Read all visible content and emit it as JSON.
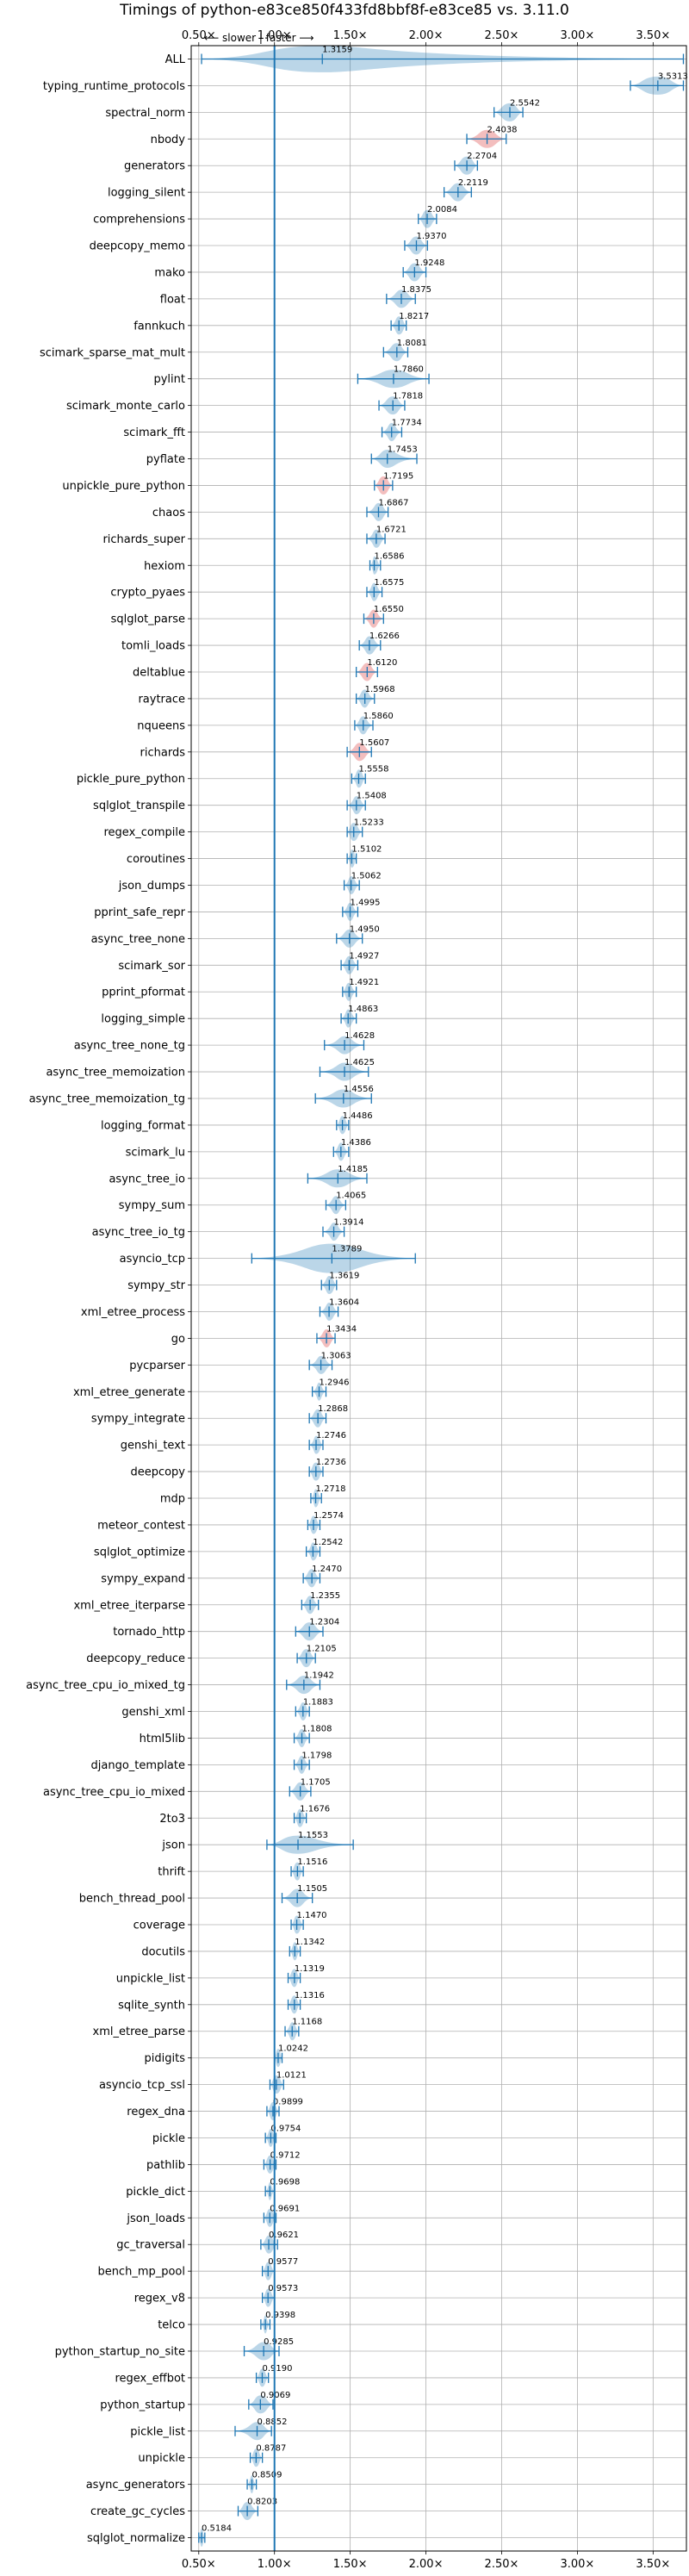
{
  "chart_data": {
    "type": "violin",
    "title": "Timings of python-e83ce850f433fd8bbf8f-e83ce85 vs. 3.11.0",
    "annotation": "⟵ slower | faster ⟶",
    "xlim": [
      0.45,
      3.72
    ],
    "xticks": [
      0.5,
      1.0,
      1.5,
      2.0,
      2.5,
      3.0,
      3.5
    ],
    "xtick_labels": [
      "0.50×",
      "1.00×",
      "1.50×",
      "2.00×",
      "2.50×",
      "3.00×",
      "3.50×"
    ],
    "reference_line": 1.0,
    "grid": true,
    "colors": {
      "violin": "#1f77b4",
      "slower": "#d62728",
      "line": "#1f77b4"
    },
    "rows": [
      {
        "name": "ALL",
        "value": 1.3159,
        "min": 0.5184,
        "max": 3.7,
        "q1": 0.9573,
        "q3": 1.6586,
        "width": 0.5
      },
      {
        "name": "typing_runtime_protocols",
        "value": 3.5313,
        "min": 3.35,
        "max": 3.7,
        "q1": 3.43,
        "q3": 3.62
      },
      {
        "name": "spectral_norm",
        "value": 2.5542,
        "min": 2.45,
        "max": 2.64,
        "q1": 2.5,
        "q3": 2.6
      },
      {
        "name": "nbody",
        "value": 2.4038,
        "min": 2.27,
        "max": 2.53,
        "q1": 2.35,
        "q3": 2.46,
        "slower": true
      },
      {
        "name": "generators",
        "value": 2.2704,
        "min": 2.19,
        "max": 2.34,
        "q1": 2.23,
        "q3": 2.31
      },
      {
        "name": "logging_silent",
        "value": 2.2119,
        "min": 2.12,
        "max": 2.3,
        "q1": 2.17,
        "q3": 2.25
      },
      {
        "name": "comprehensions",
        "value": 2.0084,
        "min": 1.95,
        "max": 2.07,
        "q1": 1.98,
        "q3": 2.04
      },
      {
        "name": "deepcopy_memo",
        "value": 1.937,
        "min": 1.86,
        "max": 2.01,
        "q1": 1.9,
        "q3": 1.97
      },
      {
        "name": "mako",
        "value": 1.9248,
        "min": 1.85,
        "max": 2.0,
        "q1": 1.89,
        "q3": 1.96
      },
      {
        "name": "float",
        "value": 1.8375,
        "min": 1.74,
        "max": 1.93,
        "q1": 1.8,
        "q3": 1.88
      },
      {
        "name": "fannkuch",
        "value": 1.8217,
        "min": 1.77,
        "max": 1.87,
        "q1": 1.8,
        "q3": 1.85
      },
      {
        "name": "scimark_sparse_mat_mult",
        "value": 1.8081,
        "min": 1.72,
        "max": 1.88,
        "q1": 1.77,
        "q3": 1.84
      },
      {
        "name": "pylint",
        "value": 1.786,
        "min": 1.55,
        "max": 2.02,
        "q1": 1.7,
        "q3": 1.88
      },
      {
        "name": "scimark_monte_carlo",
        "value": 1.7818,
        "min": 1.69,
        "max": 1.86,
        "q1": 1.74,
        "q3": 1.82
      },
      {
        "name": "scimark_fft",
        "value": 1.7734,
        "min": 1.71,
        "max": 1.84,
        "q1": 1.75,
        "q3": 1.8
      },
      {
        "name": "pyflate",
        "value": 1.7453,
        "min": 1.64,
        "max": 1.94,
        "q1": 1.7,
        "q3": 1.8
      },
      {
        "name": "unpickle_pure_python",
        "value": 1.7195,
        "min": 1.66,
        "max": 1.78,
        "q1": 1.69,
        "q3": 1.75,
        "slower": true
      },
      {
        "name": "chaos",
        "value": 1.6867,
        "min": 1.61,
        "max": 1.75,
        "q1": 1.66,
        "q3": 1.72
      },
      {
        "name": "richards_super",
        "value": 1.6721,
        "min": 1.61,
        "max": 1.73,
        "q1": 1.65,
        "q3": 1.7
      },
      {
        "name": "hexiom",
        "value": 1.6586,
        "min": 1.63,
        "max": 1.7,
        "q1": 1.65,
        "q3": 1.68
      },
      {
        "name": "crypto_pyaes",
        "value": 1.6575,
        "min": 1.61,
        "max": 1.71,
        "q1": 1.64,
        "q3": 1.68
      },
      {
        "name": "sqlglot_parse",
        "value": 1.655,
        "min": 1.59,
        "max": 1.72,
        "q1": 1.63,
        "q3": 1.68,
        "slower": true
      },
      {
        "name": "tomli_loads",
        "value": 1.6266,
        "min": 1.56,
        "max": 1.7,
        "q1": 1.6,
        "q3": 1.66
      },
      {
        "name": "deltablue",
        "value": 1.612,
        "min": 1.54,
        "max": 1.68,
        "q1": 1.58,
        "q3": 1.64,
        "slower": true
      },
      {
        "name": "raytrace",
        "value": 1.5968,
        "min": 1.54,
        "max": 1.66,
        "q1": 1.57,
        "q3": 1.62
      },
      {
        "name": "nqueens",
        "value": 1.586,
        "min": 1.53,
        "max": 1.65,
        "q1": 1.56,
        "q3": 1.61
      },
      {
        "name": "richards",
        "value": 1.5607,
        "min": 1.48,
        "max": 1.64,
        "q1": 1.53,
        "q3": 1.6,
        "slower": true
      },
      {
        "name": "pickle_pure_python",
        "value": 1.5558,
        "min": 1.51,
        "max": 1.6,
        "q1": 1.54,
        "q3": 1.58
      },
      {
        "name": "sqlglot_transpile",
        "value": 1.5408,
        "min": 1.48,
        "max": 1.6,
        "q1": 1.52,
        "q3": 1.57
      },
      {
        "name": "regex_compile",
        "value": 1.5233,
        "min": 1.48,
        "max": 1.58,
        "q1": 1.5,
        "q3": 1.55
      },
      {
        "name": "coroutines",
        "value": 1.5102,
        "min": 1.48,
        "max": 1.54,
        "q1": 1.5,
        "q3": 1.53
      },
      {
        "name": "json_dumps",
        "value": 1.5062,
        "min": 1.46,
        "max": 1.56,
        "q1": 1.49,
        "q3": 1.53
      },
      {
        "name": "pprint_safe_repr",
        "value": 1.4995,
        "min": 1.45,
        "max": 1.55,
        "q1": 1.48,
        "q3": 1.52
      },
      {
        "name": "async_tree_none",
        "value": 1.495,
        "min": 1.41,
        "max": 1.58,
        "q1": 1.46,
        "q3": 1.53
      },
      {
        "name": "scimark_sor",
        "value": 1.4927,
        "min": 1.44,
        "max": 1.55,
        "q1": 1.47,
        "q3": 1.52
      },
      {
        "name": "pprint_pformat",
        "value": 1.4921,
        "min": 1.45,
        "max": 1.54,
        "q1": 1.47,
        "q3": 1.51
      },
      {
        "name": "logging_simple",
        "value": 1.4863,
        "min": 1.44,
        "max": 1.54,
        "q1": 1.47,
        "q3": 1.51
      },
      {
        "name": "async_tree_none_tg",
        "value": 1.4628,
        "min": 1.33,
        "max": 1.59,
        "q1": 1.42,
        "q3": 1.51
      },
      {
        "name": "async_tree_memoization",
        "value": 1.4625,
        "min": 1.3,
        "max": 1.62,
        "q1": 1.41,
        "q3": 1.52
      },
      {
        "name": "async_tree_memoization_tg",
        "value": 1.4556,
        "min": 1.27,
        "max": 1.64,
        "q1": 1.39,
        "q3": 1.52
      },
      {
        "name": "logging_format",
        "value": 1.4486,
        "min": 1.41,
        "max": 1.49,
        "q1": 1.43,
        "q3": 1.47
      },
      {
        "name": "scimark_lu",
        "value": 1.4386,
        "min": 1.39,
        "max": 1.49,
        "q1": 1.42,
        "q3": 1.46
      },
      {
        "name": "async_tree_io",
        "value": 1.4185,
        "min": 1.22,
        "max": 1.61,
        "q1": 1.35,
        "q3": 1.49
      },
      {
        "name": "sympy_sum",
        "value": 1.4065,
        "min": 1.34,
        "max": 1.47,
        "q1": 1.38,
        "q3": 1.43
      },
      {
        "name": "async_tree_io_tg",
        "value": 1.3914,
        "min": 1.32,
        "max": 1.46,
        "q1": 1.37,
        "q3": 1.42
      },
      {
        "name": "asyncio_tcp",
        "value": 1.3789,
        "min": 0.85,
        "max": 1.93,
        "q1": 1.2,
        "q3": 1.56,
        "width": 0.55
      },
      {
        "name": "sympy_str",
        "value": 1.3619,
        "min": 1.31,
        "max": 1.41,
        "q1": 1.34,
        "q3": 1.39
      },
      {
        "name": "xml_etree_process",
        "value": 1.3604,
        "min": 1.3,
        "max": 1.42,
        "q1": 1.34,
        "q3": 1.39
      },
      {
        "name": "go",
        "value": 1.3434,
        "min": 1.28,
        "max": 1.4,
        "q1": 1.32,
        "q3": 1.37,
        "slower": true
      },
      {
        "name": "pycparser",
        "value": 1.3063,
        "min": 1.23,
        "max": 1.38,
        "q1": 1.28,
        "q3": 1.34
      },
      {
        "name": "xml_etree_generate",
        "value": 1.2946,
        "min": 1.25,
        "max": 1.34,
        "q1": 1.28,
        "q3": 1.31
      },
      {
        "name": "sympy_integrate",
        "value": 1.2868,
        "min": 1.23,
        "max": 1.34,
        "q1": 1.26,
        "q3": 1.31
      },
      {
        "name": "genshi_text",
        "value": 1.2746,
        "min": 1.23,
        "max": 1.32,
        "q1": 1.26,
        "q3": 1.3
      },
      {
        "name": "deepcopy",
        "value": 1.2736,
        "min": 1.23,
        "max": 1.32,
        "q1": 1.25,
        "q3": 1.3
      },
      {
        "name": "mdp",
        "value": 1.2718,
        "min": 1.24,
        "max": 1.31,
        "q1": 1.26,
        "q3": 1.29
      },
      {
        "name": "meteor_contest",
        "value": 1.2574,
        "min": 1.22,
        "max": 1.3,
        "q1": 1.24,
        "q3": 1.28
      },
      {
        "name": "sqlglot_optimize",
        "value": 1.2542,
        "min": 1.21,
        "max": 1.3,
        "q1": 1.24,
        "q3": 1.28
      },
      {
        "name": "sympy_expand",
        "value": 1.247,
        "min": 1.19,
        "max": 1.3,
        "q1": 1.22,
        "q3": 1.27
      },
      {
        "name": "xml_etree_iterparse",
        "value": 1.2355,
        "min": 1.18,
        "max": 1.29,
        "q1": 1.21,
        "q3": 1.26
      },
      {
        "name": "tornado_http",
        "value": 1.2304,
        "min": 1.14,
        "max": 1.32,
        "q1": 1.19,
        "q3": 1.27
      },
      {
        "name": "deepcopy_reduce",
        "value": 1.2105,
        "min": 1.15,
        "max": 1.27,
        "q1": 1.18,
        "q3": 1.24
      },
      {
        "name": "async_tree_cpu_io_mixed_tg",
        "value": 1.1942,
        "min": 1.08,
        "max": 1.3,
        "q1": 1.15,
        "q3": 1.24
      },
      {
        "name": "genshi_xml",
        "value": 1.1883,
        "min": 1.14,
        "max": 1.23,
        "q1": 1.17,
        "q3": 1.21
      },
      {
        "name": "html5lib",
        "value": 1.1808,
        "min": 1.13,
        "max": 1.23,
        "q1": 1.16,
        "q3": 1.2
      },
      {
        "name": "django_template",
        "value": 1.1798,
        "min": 1.13,
        "max": 1.23,
        "q1": 1.16,
        "q3": 1.2
      },
      {
        "name": "async_tree_cpu_io_mixed",
        "value": 1.1705,
        "min": 1.1,
        "max": 1.24,
        "q1": 1.14,
        "q3": 1.2
      },
      {
        "name": "2to3",
        "value": 1.1676,
        "min": 1.13,
        "max": 1.21,
        "q1": 1.15,
        "q3": 1.19
      },
      {
        "name": "json",
        "value": 1.1553,
        "min": 0.95,
        "max": 1.52,
        "q1": 1.05,
        "q3": 1.27
      },
      {
        "name": "thrift",
        "value": 1.1516,
        "min": 1.11,
        "max": 1.19,
        "q1": 1.13,
        "q3": 1.17
      },
      {
        "name": "bench_thread_pool",
        "value": 1.1505,
        "min": 1.05,
        "max": 1.25,
        "q1": 1.11,
        "q3": 1.19
      },
      {
        "name": "coverage",
        "value": 1.147,
        "min": 1.11,
        "max": 1.19,
        "q1": 1.13,
        "q3": 1.17
      },
      {
        "name": "docutils",
        "value": 1.1342,
        "min": 1.1,
        "max": 1.17,
        "q1": 1.12,
        "q3": 1.15
      },
      {
        "name": "unpickle_list",
        "value": 1.1319,
        "min": 1.09,
        "max": 1.17,
        "q1": 1.11,
        "q3": 1.15
      },
      {
        "name": "sqlite_synth",
        "value": 1.1316,
        "min": 1.09,
        "max": 1.17,
        "q1": 1.11,
        "q3": 1.15
      },
      {
        "name": "xml_etree_parse",
        "value": 1.1168,
        "min": 1.07,
        "max": 1.16,
        "q1": 1.1,
        "q3": 1.14
      },
      {
        "name": "pidigits",
        "value": 1.0242,
        "min": 1.0,
        "max": 1.05,
        "q1": 1.01,
        "q3": 1.04
      },
      {
        "name": "asyncio_tcp_ssl",
        "value": 1.0121,
        "min": 0.97,
        "max": 1.06,
        "q1": 0.99,
        "q3": 1.04
      },
      {
        "name": "regex_dna",
        "value": 0.9899,
        "min": 0.95,
        "max": 1.03,
        "q1": 0.97,
        "q3": 1.01
      },
      {
        "name": "pickle",
        "value": 0.9754,
        "min": 0.94,
        "max": 1.01,
        "q1": 0.96,
        "q3": 0.99
      },
      {
        "name": "pathlib",
        "value": 0.9712,
        "min": 0.93,
        "max": 1.01,
        "q1": 0.95,
        "q3": 0.99
      },
      {
        "name": "pickle_dict",
        "value": 0.9698,
        "min": 0.94,
        "max": 1.0,
        "q1": 0.96,
        "q3": 0.98
      },
      {
        "name": "json_loads",
        "value": 0.9691,
        "min": 0.93,
        "max": 1.01,
        "q1": 0.95,
        "q3": 0.99
      },
      {
        "name": "gc_traversal",
        "value": 0.9621,
        "min": 0.91,
        "max": 1.02,
        "q1": 0.94,
        "q3": 0.99
      },
      {
        "name": "bench_mp_pool",
        "value": 0.9577,
        "min": 0.92,
        "max": 1.0,
        "q1": 0.94,
        "q3": 0.98
      },
      {
        "name": "regex_v8",
        "value": 0.9573,
        "min": 0.92,
        "max": 1.0,
        "q1": 0.94,
        "q3": 0.98
      },
      {
        "name": "telco",
        "value": 0.9398,
        "min": 0.91,
        "max": 0.97,
        "q1": 0.93,
        "q3": 0.95
      },
      {
        "name": "python_startup_no_site",
        "value": 0.9285,
        "min": 0.8,
        "max": 1.03,
        "q1": 0.88,
        "q3": 0.98
      },
      {
        "name": "regex_effbot",
        "value": 0.919,
        "min": 0.88,
        "max": 0.96,
        "q1": 0.9,
        "q3": 0.94
      },
      {
        "name": "python_startup",
        "value": 0.9069,
        "min": 0.83,
        "max": 0.99,
        "q1": 0.87,
        "q3": 0.95
      },
      {
        "name": "pickle_list",
        "value": 0.8852,
        "min": 0.74,
        "max": 0.98,
        "q1": 0.84,
        "q3": 0.93
      },
      {
        "name": "unpickle",
        "value": 0.8787,
        "min": 0.84,
        "max": 0.92,
        "q1": 0.86,
        "q3": 0.9
      },
      {
        "name": "async_generators",
        "value": 0.8509,
        "min": 0.82,
        "max": 0.88,
        "q1": 0.84,
        "q3": 0.86
      },
      {
        "name": "create_gc_cycles",
        "value": 0.8203,
        "min": 0.76,
        "max": 0.89,
        "q1": 0.79,
        "q3": 0.85
      },
      {
        "name": "sqlglot_normalize",
        "value": 0.5184,
        "min": 0.5,
        "max": 0.54,
        "q1": 0.51,
        "q3": 0.53
      }
    ]
  }
}
